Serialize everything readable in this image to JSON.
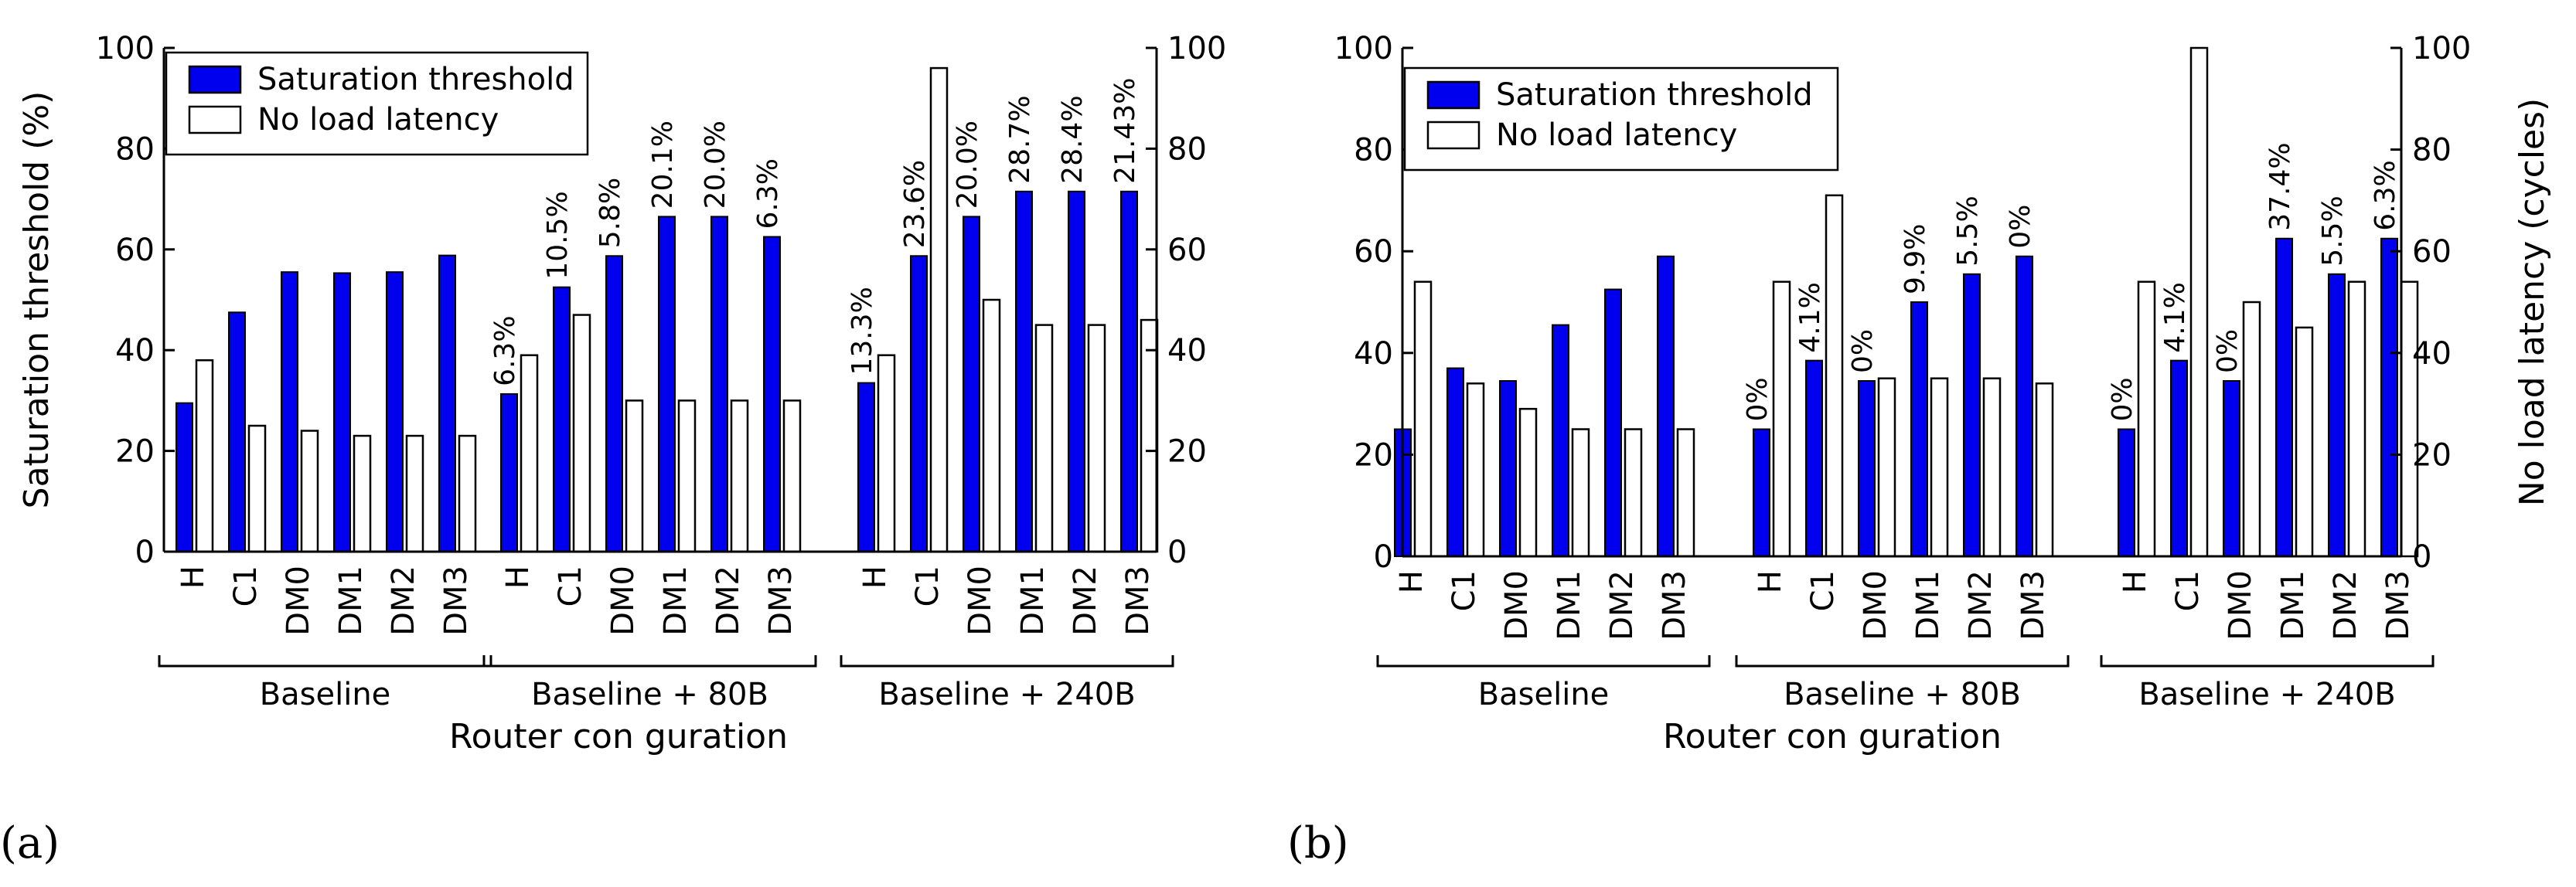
{
  "colors": {
    "sat": "#0000ee",
    "lat": "#ffffff",
    "stroke": "#000000"
  },
  "chart_data": [
    {
      "type": "bar",
      "panel_label": "(a)",
      "ylabel_left": "Saturation threshold (%)",
      "ylabel_right": "",
      "xlabel": "Router con  guration",
      "ylim": [
        0,
        100
      ],
      "yticks": [
        "0",
        "20",
        "40",
        "60",
        "80",
        "100"
      ],
      "legend": [
        "Saturation threshold",
        "No load latency"
      ],
      "groups": [
        {
          "name": "Baseline",
          "categories": [
            "H",
            "C1",
            "DM0",
            "DM1",
            "DM2",
            "DM3"
          ],
          "saturation": [
            29.5,
            47.5,
            55.5,
            55.3,
            55.5,
            58.8
          ],
          "latency": [
            38,
            25,
            24,
            23,
            23,
            23
          ],
          "labels": [
            "",
            "",
            "",
            "",
            "",
            ""
          ]
        },
        {
          "name": "Baseline + 80B",
          "categories": [
            "H",
            "C1",
            "DM0",
            "DM1",
            "DM2",
            "DM3"
          ],
          "saturation": [
            31.3,
            52.5,
            58.7,
            66.5,
            66.5,
            62.5
          ],
          "latency": [
            39,
            47,
            30,
            30,
            30,
            30
          ],
          "labels": [
            "6.3%",
            "10.5%",
            "5.8%",
            "20.1%",
            "20.0%",
            "6.3%"
          ]
        },
        {
          "name": "Baseline + 240B",
          "categories": [
            "H",
            "C1",
            "DM0",
            "DM1",
            "DM2",
            "DM3"
          ],
          "saturation": [
            33.5,
            58.7,
            66.5,
            71.5,
            71.5,
            71.5
          ],
          "latency": [
            39,
            96,
            50,
            45,
            45,
            46
          ],
          "labels": [
            "13.3%",
            "23.6%",
            "20.0%",
            "28.7%",
            "28.4%",
            "21.43%"
          ]
        }
      ]
    },
    {
      "type": "bar",
      "panel_label": "(b)",
      "ylabel_left": "",
      "ylabel_right": "No load latency (cycles)",
      "xlabel": "Router con  guration",
      "ylim": [
        0,
        100
      ],
      "yticks": [
        "0",
        "20",
        "40",
        "60",
        "80",
        "100"
      ],
      "legend": [
        "Saturation threshold",
        "No load latency"
      ],
      "groups": [
        {
          "name": "Baseline",
          "categories": [
            "H",
            "C1",
            "DM0",
            "DM1",
            "DM2",
            "DM3"
          ],
          "saturation": [
            25,
            37,
            34.5,
            45.5,
            52.5,
            59
          ],
          "latency": [
            54,
            34,
            29,
            25,
            25,
            25
          ],
          "labels": [
            "",
            "",
            "",
            "",
            "",
            ""
          ]
        },
        {
          "name": "Baseline + 80B",
          "categories": [
            "H",
            "C1",
            "DM0",
            "DM1",
            "DM2",
            "DM3"
          ],
          "saturation": [
            25,
            38.5,
            34.5,
            50,
            55.5,
            59
          ],
          "latency": [
            54,
            71,
            35,
            35,
            35,
            34
          ],
          "labels": [
            "0%",
            "4.1%",
            "0%",
            "9.9%",
            "5.5%",
            "0%"
          ]
        },
        {
          "name": "Baseline + 240B",
          "categories": [
            "H",
            "C1",
            "DM0",
            "DM1",
            "DM2",
            "DM3"
          ],
          "saturation": [
            25,
            38.5,
            34.5,
            62.5,
            55.5,
            62.5
          ],
          "latency": [
            54,
            100,
            50,
            45,
            54,
            54
          ],
          "labels": [
            "0%",
            "4.1%",
            "0%",
            "37.4%",
            "5.5%",
            "6.3%"
          ]
        }
      ]
    }
  ]
}
